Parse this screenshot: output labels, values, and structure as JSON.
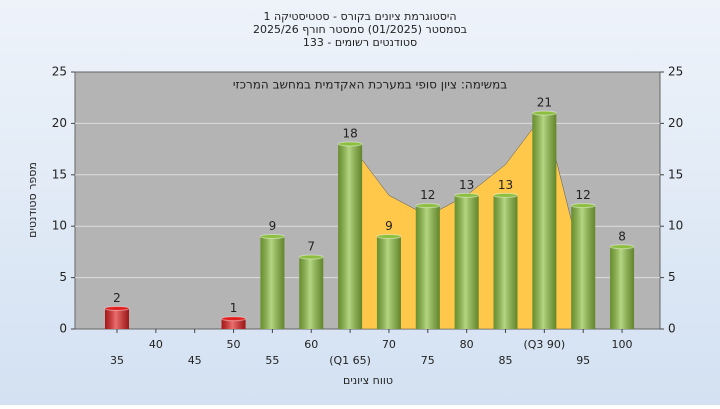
{
  "chart_data": {
    "type": "bar",
    "title": "היסטוגרמת ציונים בקורס - סטטיסטיקה 1",
    "subtitle": [
      "בסמסטר  (01/2025)  סמסטר חורף 2025/26",
      "133 - סטודנטים רשומים"
    ],
    "annotation": "במשימה: ציון סופי במערכת האקדמית במחשב המרכזי",
    "y_label": "מספר סטודנטים",
    "x_label": "טווח ציונים",
    "categories": [
      "35",
      "40",
      "45",
      "50",
      "55",
      "60",
      "(Q1 65)",
      "70",
      "75",
      "80",
      "85",
      "(Q3 90)",
      "95",
      "100"
    ],
    "values": [
      2,
      0,
      0,
      1,
      9,
      7,
      18,
      9,
      12,
      13,
      13,
      21,
      12,
      8
    ],
    "colors": [
      "#e02020",
      "#e02020",
      "#e02020",
      "#e02020",
      "#8cbf3f",
      "#8cbf3f",
      "#8cbf3f",
      "#8cbf3f",
      "#8cbf3f",
      "#8cbf3f",
      "#8cbf3f",
      "#8cbf3f",
      "#8cbf3f",
      "#8cbf3f"
    ],
    "area": {
      "color": "#ffc84a",
      "values": [
        null,
        null,
        null,
        null,
        null,
        null,
        18,
        13,
        11,
        13,
        16,
        21,
        6,
        null
      ]
    },
    "ylim": [
      0,
      25
    ],
    "yticks": [
      0,
      5,
      10,
      15,
      20,
      25
    ],
    "y2lim": [
      0,
      25
    ],
    "y2ticks": [
      0,
      5,
      10,
      15,
      20,
      25
    ],
    "grid": true
  }
}
